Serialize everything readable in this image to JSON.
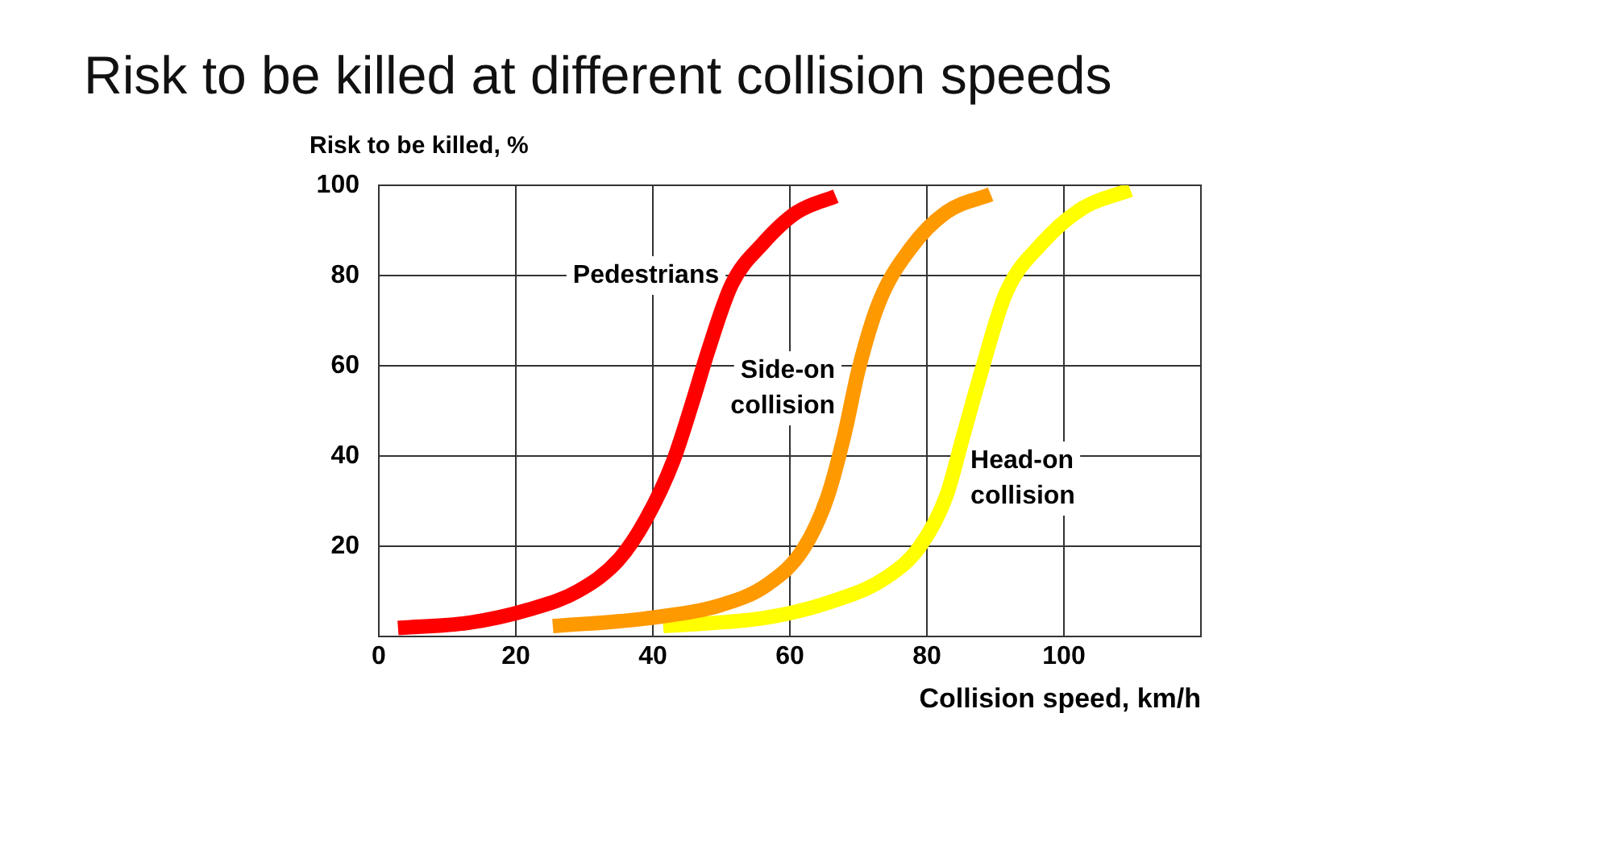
{
  "chart_data": {
    "type": "line",
    "title": "Risk to be killed at different collision speeds",
    "xlabel": "Collision speed, km/h",
    "ylabel": "Risk to be killed, %",
    "xlim": [
      0,
      120
    ],
    "xticks": [
      0,
      20,
      40,
      60,
      80,
      100
    ],
    "ylim": [
      0,
      100
    ],
    "yticks": [
      20,
      40,
      60,
      80,
      100
    ],
    "grid": true,
    "legend": false,
    "marker": "none",
    "line_style": "solid",
    "series": [
      {
        "name": "Pedestrians",
        "color": "#ff0000",
        "x": [
          2.8,
          13,
          22,
          29,
          35,
          39,
          43,
          46,
          48,
          51.5,
          56,
          61,
          66.7
        ],
        "values": [
          1.9,
          3,
          6,
          10,
          17,
          26,
          39,
          53,
          63,
          78,
          87,
          94,
          97.6
        ]
      },
      {
        "name": "Side-on collision",
        "color": "#ff9900",
        "x": [
          25.4,
          39,
          50,
          56.7,
          62,
          65.5,
          68,
          70,
          73,
          77.6,
          82.8,
          89.3
        ],
        "values": [
          2.3,
          4,
          7,
          11.5,
          19.5,
          31,
          45,
          59,
          74,
          86,
          94,
          98
        ]
      },
      {
        "name": "Head-on collision",
        "color": "#ffff00",
        "x": [
          41.5,
          56.7,
          67,
          74,
          79,
          82.8,
          85.4,
          88,
          91.5,
          96.7,
          102.8,
          109.7
        ],
        "values": [
          2.3,
          4.2,
          8.2,
          13,
          20,
          31,
          45,
          59,
          76,
          87,
          95,
          99
        ]
      }
    ]
  }
}
